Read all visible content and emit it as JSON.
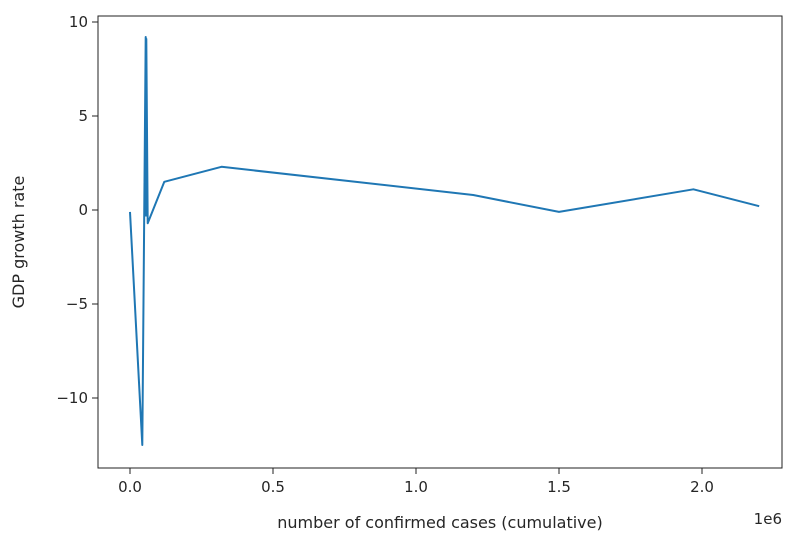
{
  "chart_data": {
    "type": "line",
    "title": "",
    "xlabel": "number of confirmed cases (cumulative)",
    "ylabel": "GDP growth rate",
    "x_offset_label": "1e6",
    "xlim": [
      -0.11,
      2.28
    ],
    "ylim": [
      -13.6,
      10.3
    ],
    "xticks": [
      0.0,
      0.5,
      1.0,
      1.5,
      2.0
    ],
    "xtick_labels": [
      "0.0",
      "0.5",
      "1.0",
      "1.5",
      "2.0"
    ],
    "yticks": [
      -10,
      -5,
      0,
      5,
      10
    ],
    "ytick_labels": [
      "−10",
      "−5",
      "0",
      "5",
      "10"
    ],
    "grid": false,
    "color": "#1f77b4",
    "x_scale_note": "x values in units of 1e6",
    "x": [
      0.0,
      0.043,
      0.055,
      0.056,
      0.057,
      0.062,
      0.12,
      0.32,
      1.2,
      1.5,
      1.97,
      2.2
    ],
    "y": [
      -0.1,
      -12.5,
      9.2,
      -0.3,
      9.1,
      -0.7,
      1.5,
      2.3,
      0.8,
      -0.1,
      1.1,
      0.2
    ]
  }
}
